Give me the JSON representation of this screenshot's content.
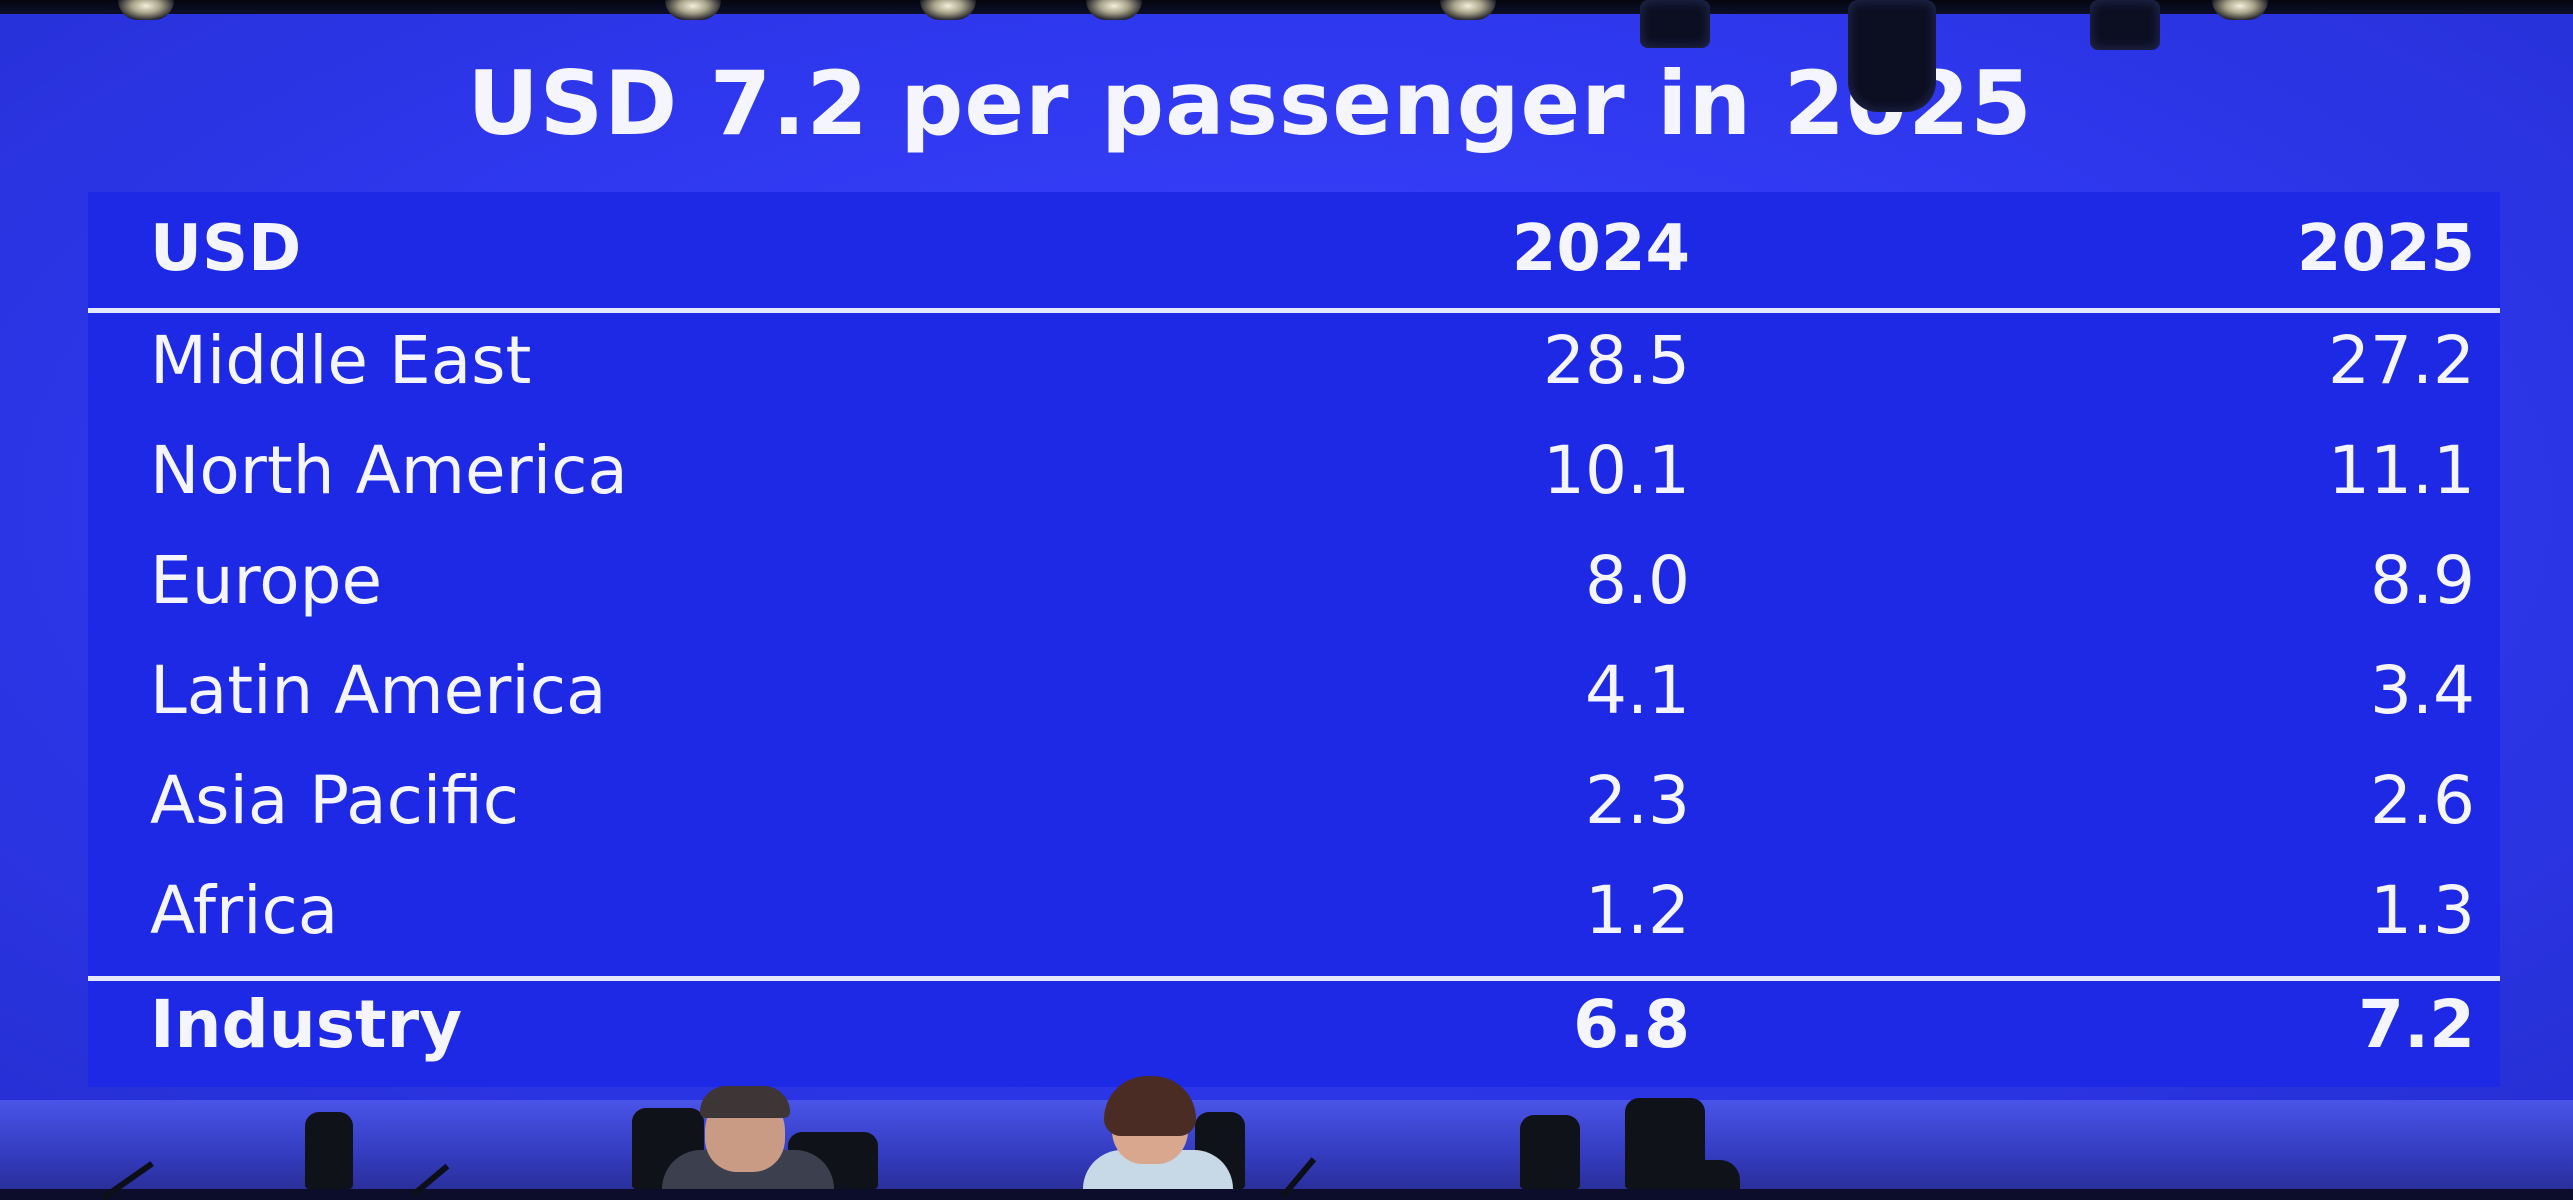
{
  "slide": {
    "title": "USD 7.2 per passenger in 2025"
  },
  "table": {
    "headers": [
      "USD",
      "2024",
      "2025"
    ],
    "rows": [
      {
        "region": "Middle East",
        "v2024": "28.5",
        "v2025": "27.2"
      },
      {
        "region": "North America",
        "v2024": "10.1",
        "v2025": "11.1"
      },
      {
        "region": "Europe",
        "v2024": "8.0",
        "v2025": "8.9"
      },
      {
        "region": "Latin America",
        "v2024": "4.1",
        "v2025": "3.4"
      },
      {
        "region": "Asia Pacific",
        "v2024": "2.3",
        "v2025": "2.6"
      },
      {
        "region": "Africa",
        "v2024": "1.2",
        "v2025": "1.3"
      }
    ],
    "total": {
      "region": "Industry",
      "v2024": "6.8",
      "v2025": "7.2"
    }
  },
  "colors": {
    "screen": "#2f38ef",
    "table_panel": "#1d29e4",
    "text": "#f4f5ff",
    "rule": "#e6e8ff"
  }
}
